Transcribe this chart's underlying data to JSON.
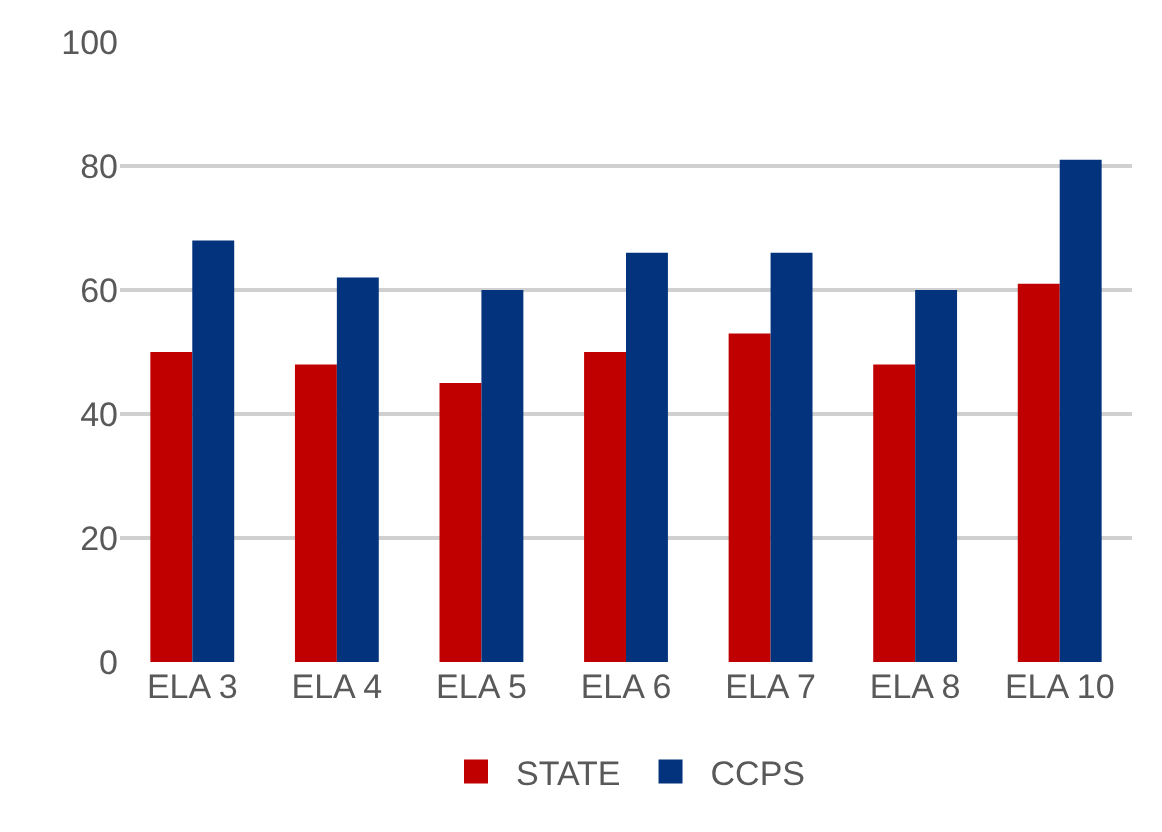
{
  "chart_data": {
    "type": "bar",
    "categories": [
      "ELA 3",
      "ELA 4",
      "ELA 5",
      "ELA 6",
      "ELA 7",
      "ELA 8",
      "ELA 10"
    ],
    "series": [
      {
        "name": "STATE",
        "color": "#c00000",
        "values": [
          50,
          48,
          45,
          50,
          53,
          48,
          61
        ]
      },
      {
        "name": "CCPS",
        "color": "#03337c",
        "values": [
          68,
          62,
          60,
          66,
          66,
          60,
          81
        ]
      }
    ],
    "ylim": [
      0,
      100
    ],
    "yticks": [
      0,
      20,
      40,
      60,
      80,
      100
    ],
    "grid": "y",
    "legend": "bottom"
  }
}
